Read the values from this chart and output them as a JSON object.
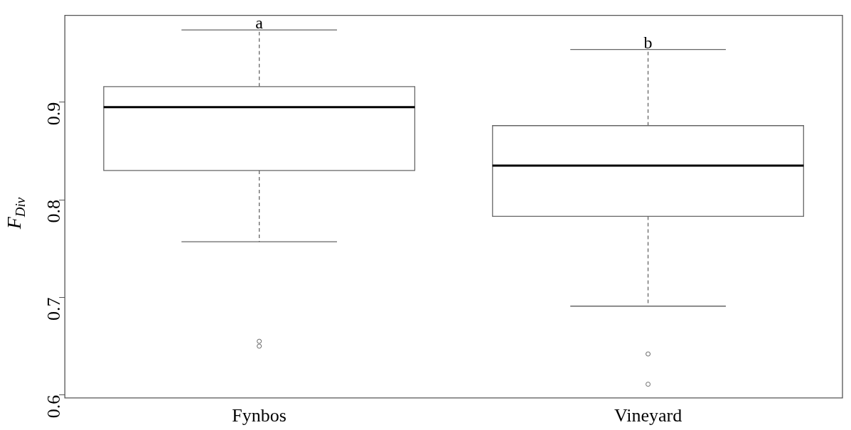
{
  "chart_data": {
    "type": "box",
    "ylabel": "F$_{Div}$",
    "categories": [
      "Fynbos",
      "Vineyard"
    ],
    "boxes": [
      {
        "low": 0.757,
        "q1": 0.83,
        "median": 0.895,
        "q3": 0.916,
        "high": 0.974,
        "outliers": [
          0.655,
          0.65
        ]
      },
      {
        "low": 0.691,
        "q1": 0.783,
        "median": 0.835,
        "q3": 0.876,
        "high": 0.954,
        "outliers": [
          0.642,
          0.611
        ]
      }
    ],
    "color": "#666666",
    "ylim": [
      0.597,
      0.989
    ],
    "yticks": [
      0.6,
      0.7,
      0.8,
      0.9
    ],
    "grid": false,
    "legend": false,
    "annotations": [
      {
        "text": "a",
        "x": "Fynbos",
        "y": 0.974
      },
      {
        "text": "b",
        "x": "Vineyard",
        "y": 0.954
      }
    ]
  }
}
